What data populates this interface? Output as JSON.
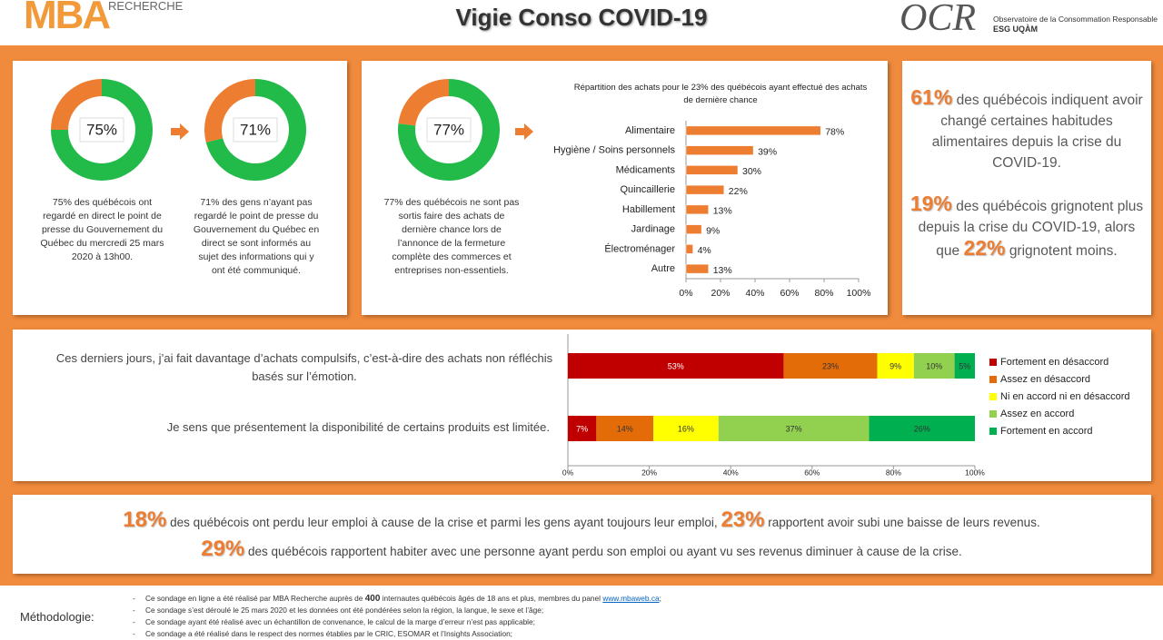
{
  "header": {
    "brand": "MBA",
    "brand_sub": "RECHERCHE",
    "title": "Vigie Conso COVID-19",
    "partner": "OCR",
    "partner_name": "Observatoire de la Consommation Responsable",
    "partner_school": "ESG UQÀM"
  },
  "donut_captions": [
    "75% des québécois ont regardé en direct le point de presse du Gouvernement du Québec du mercredi 25 mars 2020 à 13h00.",
    "71% des gens n’ayant pas regardé le point de presse du Gouvernement du Québec en direct se sont informés au sujet des informations qui y ont été communiqué.",
    "77% des québécois ne sont pas sortis faire des achats de dernière chance lors de l’annonce de la fermeture complète des commerces et entreprises non-essentiels."
  ],
  "chart_data": [
    {
      "type": "pie",
      "donut": true,
      "values": [
        75,
        25
      ],
      "value_labels": [
        "75%",
        null
      ],
      "colors": [
        "#22bb4a",
        "#ed7d31"
      ]
    },
    {
      "type": "pie",
      "donut": true,
      "values": [
        71,
        29
      ],
      "value_labels": [
        "71%",
        null
      ],
      "colors": [
        "#22bb4a",
        "#ed7d31"
      ]
    },
    {
      "type": "pie",
      "donut": true,
      "values": [
        77,
        23
      ],
      "value_labels": [
        "77%",
        null
      ],
      "colors": [
        "#22bb4a",
        "#ed7d31"
      ]
    },
    {
      "type": "hbar",
      "title": "Répartition des achats pour le 23% des québécois ayant effectué des achats de dernière chance",
      "categories": [
        "Alimentaire",
        "Hygiène / Soins personnels",
        "Médicaments",
        "Quincaillerie",
        "Habillement",
        "Jardinage",
        "Électroménager",
        "Autre"
      ],
      "values": [
        78,
        39,
        30,
        22,
        13,
        9,
        4,
        13
      ],
      "value_labels": [
        "78%",
        "39%",
        "30%",
        "22%",
        "13%",
        "9%",
        "4%",
        "13%"
      ],
      "color": "#ed7d31",
      "xlim": [
        0,
        100
      ],
      "xticks": [
        {
          "value": 0,
          "label": "0%"
        },
        {
          "value": 20,
          "label": "20%"
        },
        {
          "value": 40,
          "label": "40%"
        },
        {
          "value": 60,
          "label": "60%"
        },
        {
          "value": 80,
          "label": "80%"
        },
        {
          "value": 100,
          "label": "100%"
        }
      ]
    },
    {
      "type": "stacked_hbar",
      "categories": [
        "Ces derniers jours, j’ai fait davantage d’achats compulsifs, c’est-à-dire des achats non réfléchis basés sur l’émotion.",
        "Je sens que présentement la disponibilité de certains produits est limitée."
      ],
      "series": [
        {
          "name": "Fortement en désaccord",
          "color": "#c00000",
          "values": [
            53,
            7
          ],
          "value_labels": [
            "53%",
            "7%"
          ]
        },
        {
          "name": "Assez en désaccord",
          "color": "#e36c09",
          "values": [
            23,
            14
          ],
          "value_labels": [
            "23%",
            "14%"
          ]
        },
        {
          "name": "Ni en accord ni en désaccord",
          "color": "#ffff00",
          "values": [
            9,
            16
          ],
          "value_labels": [
            "9%",
            "16%"
          ]
        },
        {
          "name": "Assez en accord",
          "color": "#92d050",
          "values": [
            10,
            37
          ],
          "value_labels": [
            "10%",
            "37%"
          ]
        },
        {
          "name": "Fortement en accord",
          "color": "#00b050",
          "values": [
            5,
            26
          ],
          "value_labels": [
            "5%",
            "26%"
          ]
        }
      ],
      "xlim": [
        0,
        100
      ],
      "xticks": [
        {
          "value": 0,
          "label": "0%"
        },
        {
          "value": 20,
          "label": "20%"
        },
        {
          "value": 40,
          "label": "40%"
        },
        {
          "value": 60,
          "label": "60%"
        },
        {
          "value": 80,
          "label": "80%"
        },
        {
          "value": 100,
          "label": "100%"
        }
      ],
      "legend": "right"
    }
  ],
  "side_facts": [
    [
      {
        "big": "61%"
      },
      {
        "text": "des québécois indiquent avoir changé certaines habitudes alimentaires depuis la crise du COVID-19."
      }
    ],
    [
      {
        "big": "19%"
      },
      {
        "text": "des québécois grignotent plus depuis la crise du COVID-19, alors que"
      },
      {
        "big": "22%"
      },
      {
        "text": "grignotent moins."
      }
    ]
  ],
  "bottom_facts": [
    [
      {
        "big": "18%"
      },
      {
        "text": "des québécois ont perdu leur emploi à cause de la crise et parmi les gens ayant toujours leur emploi,"
      },
      {
        "big": "23%"
      },
      {
        "text": "rapportent avoir subi une baisse de leurs revenus."
      }
    ],
    [
      {
        "big": "29%"
      },
      {
        "text": "des québécois rapportent habiter avec une personne ayant perdu son emploi ou ayant vu ses revenus diminuer à cause de la crise."
      }
    ]
  ],
  "methodology": {
    "label": "Méthodologie:",
    "items": [
      [
        {
          "text": "Ce sondage en ligne a été réalisé  par MBA Recherche auprès de"
        },
        {
          "bold": "400"
        },
        {
          "text": "internautes québécois âgés de 18 ans et plus, membres du panel"
        },
        {
          "link": "www.mbaweb.ca"
        },
        {
          "text": ";"
        }
      ],
      [
        {
          "text": "Ce sondage s’est déroulé le 25 mars 2020 et les données ont été pondérées selon la région, la langue, le sexe et l’âge;"
        }
      ],
      [
        {
          "text": "Ce sondage ayant été réalisé avec un échantillon de convenance, le calcul de la marge d’erreur n’est pas applicable;"
        }
      ],
      [
        {
          "text": "Ce sondage a été réalisé dans le respect des normes établies par le CRIC, ESOMAR et l’Insights Association;"
        }
      ]
    ]
  }
}
